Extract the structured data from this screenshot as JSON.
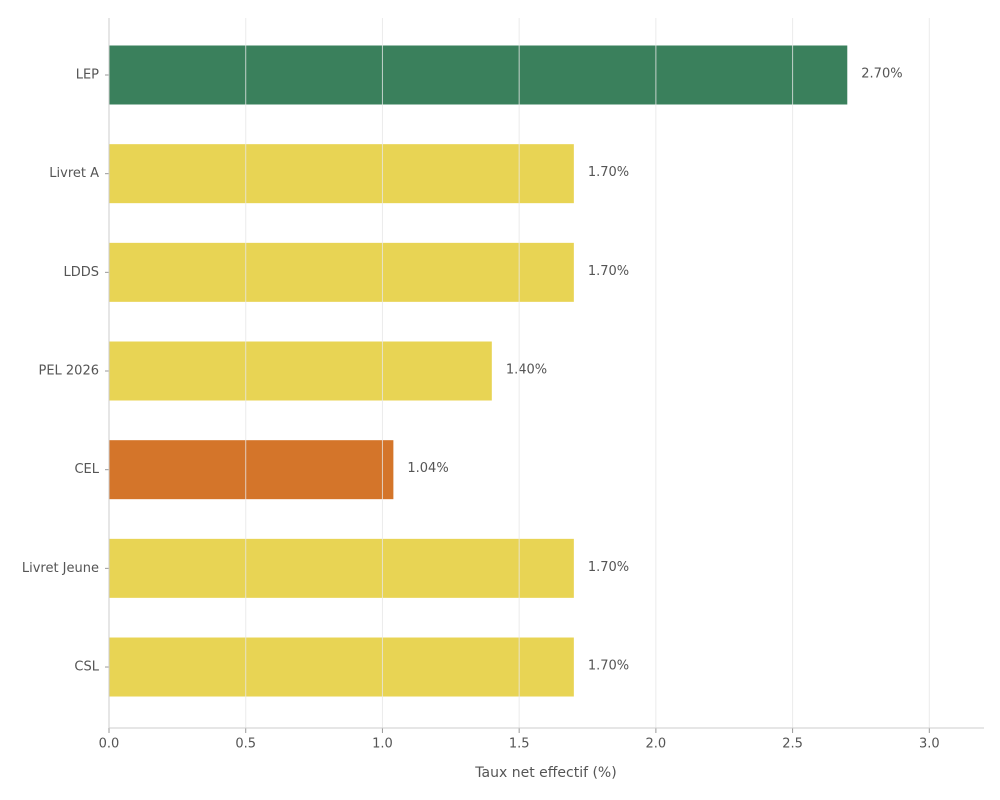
{
  "chart_data": {
    "type": "hbar",
    "categories": [
      "LEP",
      "Livret A",
      "LDDS",
      "PEL 2026",
      "CEL",
      "Livret Jeune",
      "CSL"
    ],
    "values": [
      2.7,
      1.7,
      1.7,
      1.4,
      1.04,
      1.7,
      1.7
    ],
    "value_labels": [
      "2.70%",
      "1.70%",
      "1.70%",
      "1.40%",
      "1.04%",
      "1.70%",
      "1.70%"
    ],
    "colors": [
      "#3a805c",
      "#e8d454",
      "#e8d454",
      "#e8d454",
      "#d4752a",
      "#e8d454",
      "#e8d454"
    ],
    "x_label": "Taux net effectif (%)",
    "xlim": [
      0,
      3.2
    ],
    "xticks": [
      {
        "value": 0,
        "label": "0.0"
      },
      0.5,
      {
        "value": 1,
        "label": "1.0"
      },
      1.5,
      {
        "value": 2,
        "label": "2.0"
      },
      2.5,
      {
        "value": 3,
        "label": "3.0"
      }
    ],
    "grid": true
  }
}
